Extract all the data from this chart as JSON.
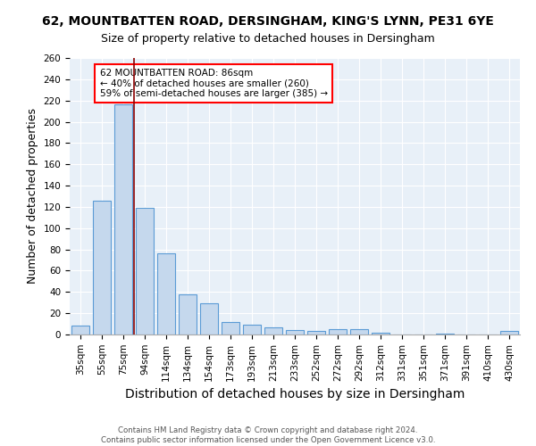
{
  "title1": "62, MOUNTBATTEN ROAD, DERSINGHAM, KING'S LYNN, PE31 6YE",
  "title2": "Size of property relative to detached houses in Dersingham",
  "xlabel": "Distribution of detached houses by size in Dersingham",
  "ylabel": "Number of detached properties",
  "categories": [
    "35sqm",
    "55sqm",
    "75sqm",
    "94sqm",
    "114sqm",
    "134sqm",
    "154sqm",
    "173sqm",
    "193sqm",
    "213sqm",
    "233sqm",
    "252sqm",
    "272sqm",
    "292sqm",
    "312sqm",
    "331sqm",
    "351sqm",
    "371sqm",
    "391sqm",
    "410sqm",
    "430sqm"
  ],
  "values": [
    8,
    126,
    216,
    119,
    76,
    38,
    29,
    12,
    9,
    7,
    4,
    3,
    5,
    5,
    2,
    0,
    0,
    1,
    0,
    0,
    3
  ],
  "bar_color": "#c5d8ed",
  "bar_edge_color": "#5b9bd5",
  "red_line_x": 2.5,
  "annotation_text": "62 MOUNTBATTEN ROAD: 86sqm\n← 40% of detached houses are smaller (260)\n59% of semi-detached houses are larger (385) →",
  "annotation_box_color": "white",
  "annotation_box_edge_color": "red",
  "footer1": "Contains HM Land Registry data © Crown copyright and database right 2024.",
  "footer2": "Contains public sector information licensed under the Open Government Licence v3.0.",
  "ylim": [
    0,
    260
  ],
  "yticks": [
    0,
    20,
    40,
    60,
    80,
    100,
    120,
    140,
    160,
    180,
    200,
    220,
    240,
    260
  ],
  "background_color": "#e8f0f8",
  "grid_color": "white",
  "title1_fontsize": 10,
  "title2_fontsize": 9,
  "xlabel_fontsize": 10,
  "ylabel_fontsize": 9,
  "tick_fontsize": 7.5,
  "annotation_fontsize": 7.5,
  "footer_fontsize": 6.2
}
